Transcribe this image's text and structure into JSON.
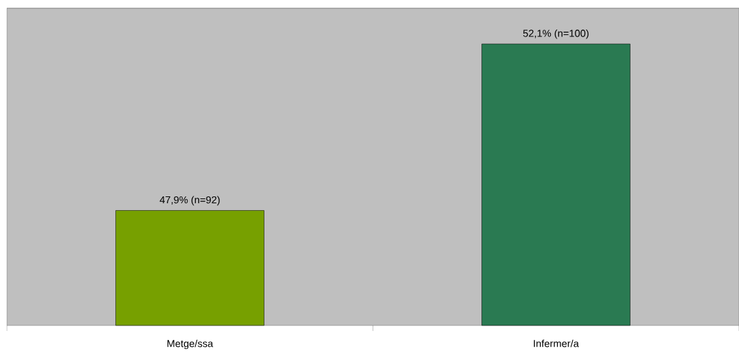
{
  "chart_data": {
    "type": "bar",
    "categories": [
      "Metge/ssa",
      "Infermer/a"
    ],
    "values": [
      47.9,
      52.1
    ],
    "colors": [
      "#77a000",
      "#2a7a52"
    ],
    "value_labels": [
      "47,9%  (n=92)",
      "52,1%  (n=100)"
    ],
    "ylim": [
      45,
      53
    ]
  }
}
